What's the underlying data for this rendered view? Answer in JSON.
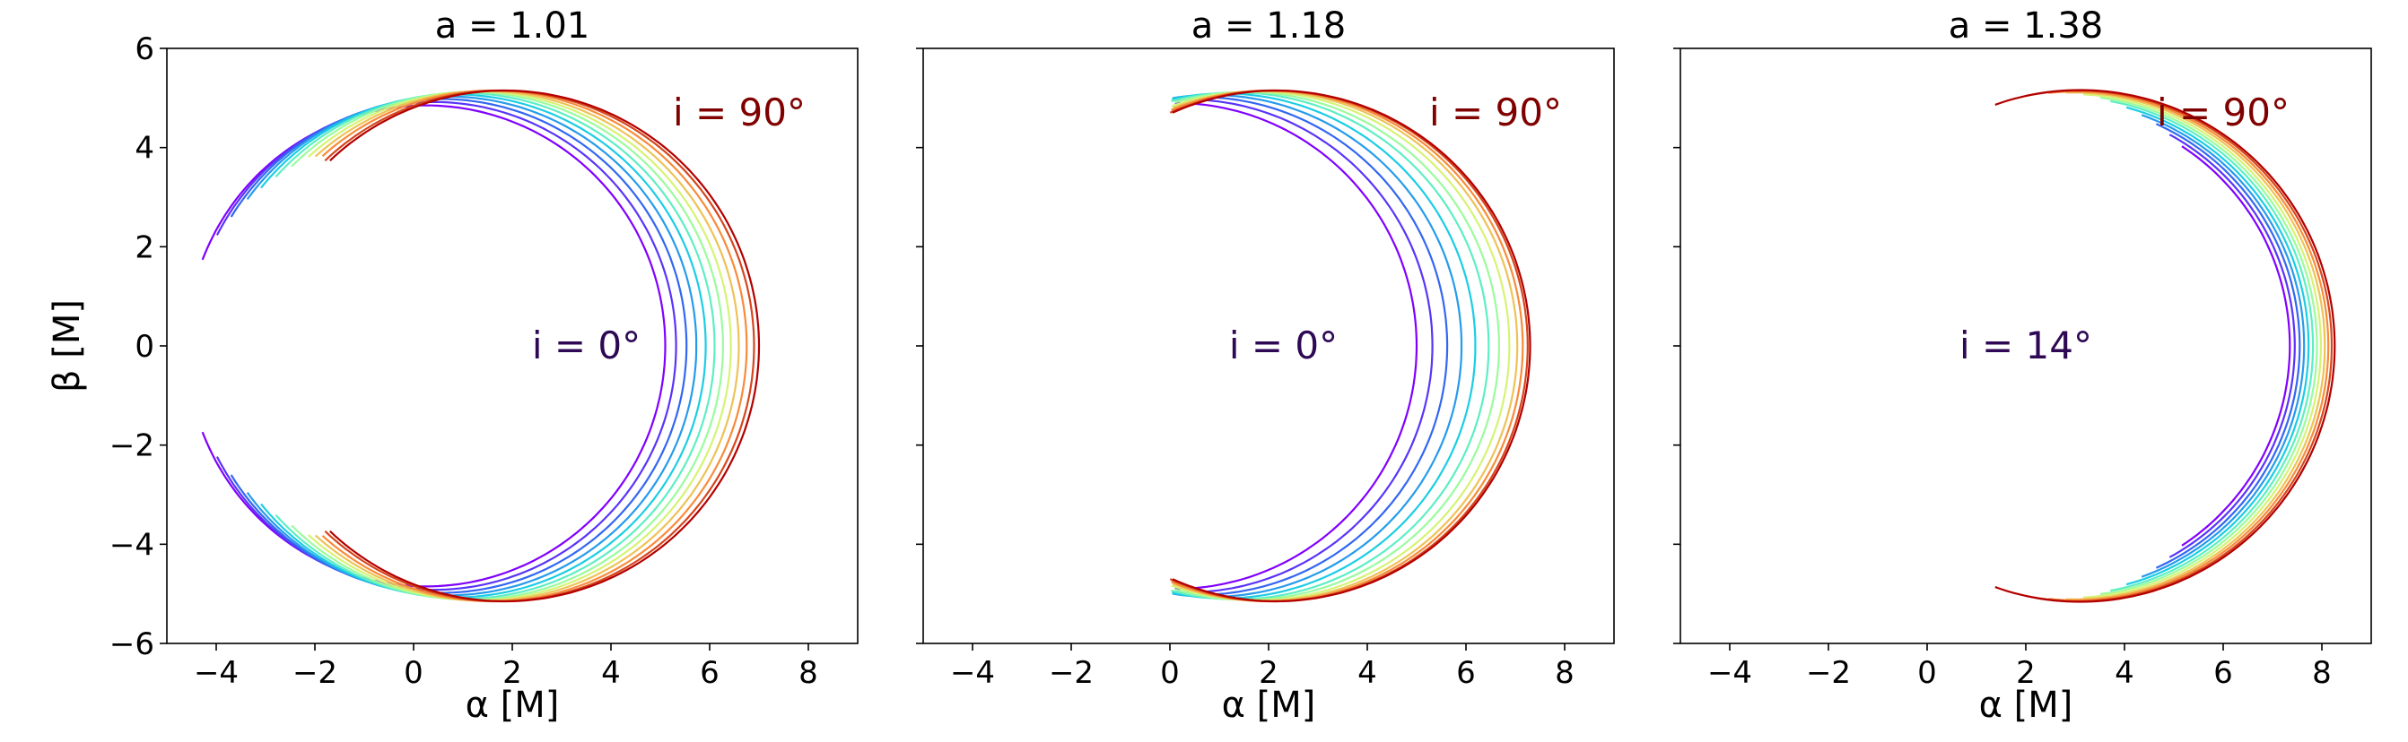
{
  "chart_data": [
    {
      "type": "line",
      "title": "a = 1.01",
      "xlabel": "α [M]",
      "ylabel": "β [M]",
      "xlim": [
        -5,
        9
      ],
      "ylim": [
        -6,
        6
      ],
      "xticks": [
        "−4",
        "−2",
        "0",
        "2",
        "4",
        "6",
        "8"
      ],
      "yticks": [
        "−6",
        "−4",
        "−2",
        "0",
        "2",
        "4",
        "6"
      ],
      "xtick_values": [
        -4,
        -2,
        0,
        2,
        4,
        6,
        8
      ],
      "ytick_values": [
        -6,
        -4,
        -2,
        0,
        2,
        4,
        6
      ],
      "annotations": [
        {
          "text": "i = 90°",
          "x": 6.6,
          "y": 4.7,
          "color": "#800000"
        },
        {
          "text": "i = 0°",
          "x": 3.5,
          "y": 0.0,
          "color": "#2e0854"
        }
      ],
      "series_meta": {
        "count": 12,
        "colormap": "rainbow",
        "inclination_start": 0,
        "inclination_end": 90
      },
      "shadow_params": [
        {
          "center_x": 0.25,
          "radius": 4.85,
          "cut_left_x": -4.3
        },
        {
          "center_x": 0.4,
          "radius": 4.92,
          "cut_left_x": -4.0
        },
        {
          "center_x": 0.55,
          "radius": 4.98,
          "cut_left_x": -3.7
        },
        {
          "center_x": 0.7,
          "radius": 5.03,
          "cut_left_x": -3.4
        },
        {
          "center_x": 0.85,
          "radius": 5.07,
          "cut_left_x": -3.1
        },
        {
          "center_x": 1.0,
          "radius": 5.1,
          "cut_left_x": -2.8
        },
        {
          "center_x": 1.15,
          "radius": 5.12,
          "cut_left_x": -2.5
        },
        {
          "center_x": 1.3,
          "radius": 5.13,
          "cut_left_x": -2.2
        },
        {
          "center_x": 1.45,
          "radius": 5.14,
          "cut_left_x": -2.0
        },
        {
          "center_x": 1.6,
          "radius": 5.15,
          "cut_left_x": -1.9
        },
        {
          "center_x": 1.75,
          "radius": 5.15,
          "cut_left_x": -1.8
        },
        {
          "center_x": 1.85,
          "radius": 5.15,
          "cut_left_x": -1.75
        }
      ]
    },
    {
      "type": "line",
      "title": "a = 1.18",
      "xlabel": "α [M]",
      "ylabel": "",
      "xlim": [
        -5,
        9
      ],
      "ylim": [
        -6,
        6
      ],
      "xticks": [
        "−4",
        "−2",
        "0",
        "2",
        "4",
        "6",
        "8"
      ],
      "yticks": [],
      "xtick_values": [
        -4,
        -2,
        0,
        2,
        4,
        6,
        8
      ],
      "ytick_values": [
        -6,
        -4,
        -2,
        0,
        2,
        4,
        6
      ],
      "annotations": [
        {
          "text": "i = 90°",
          "x": 6.6,
          "y": 4.7,
          "color": "#800000"
        },
        {
          "text": "i = 0°",
          "x": 2.3,
          "y": 0.0,
          "color": "#2e0854"
        }
      ],
      "series_meta": {
        "count": 12,
        "colormap": "rainbow",
        "inclination_start": 0,
        "inclination_end": 90
      },
      "shadow_params": [
        {
          "center_x": 0.1,
          "radius": 4.9,
          "cut_left_x": 0.0
        },
        {
          "center_x": 0.35,
          "radius": 4.97,
          "cut_left_x": 0.0
        },
        {
          "center_x": 0.6,
          "radius": 5.02,
          "cut_left_x": 0.0
        },
        {
          "center_x": 0.85,
          "radius": 5.06,
          "cut_left_x": 0.0
        },
        {
          "center_x": 1.1,
          "radius": 5.09,
          "cut_left_x": 0.0
        },
        {
          "center_x": 1.35,
          "radius": 5.11,
          "cut_left_x": 0.0
        },
        {
          "center_x": 1.55,
          "radius": 5.12,
          "cut_left_x": 0.0
        },
        {
          "center_x": 1.75,
          "radius": 5.13,
          "cut_left_x": 0.0
        },
        {
          "center_x": 1.9,
          "radius": 5.14,
          "cut_left_x": 0.0
        },
        {
          "center_x": 2.0,
          "radius": 5.15,
          "cut_left_x": 0.0
        },
        {
          "center_x": 2.1,
          "radius": 5.15,
          "cut_left_x": 0.0
        },
        {
          "center_x": 2.15,
          "radius": 5.15,
          "cut_left_x": 0.0
        }
      ]
    },
    {
      "type": "line",
      "title": "a = 1.38",
      "xlabel": "α [M]",
      "ylabel": "",
      "xlim": [
        -5,
        9
      ],
      "ylim": [
        -6,
        6
      ],
      "xticks": [
        "−4",
        "−2",
        "0",
        "2",
        "4",
        "6",
        "8"
      ],
      "yticks": [],
      "xtick_values": [
        -4,
        -2,
        0,
        2,
        4,
        6,
        8
      ],
      "ytick_values": [
        -6,
        -4,
        -2,
        0,
        2,
        4,
        6
      ],
      "annotations": [
        {
          "text": "i = 90°",
          "x": 6.0,
          "y": 4.7,
          "color": "#800000"
        },
        {
          "text": "i = 14°",
          "x": 2.0,
          "y": 0.0,
          "color": "#2e0854"
        }
      ],
      "series_meta": {
        "count": 12,
        "colormap": "rainbow",
        "inclination_start": 14,
        "inclination_end": 90
      },
      "shadow_params": [
        {
          "center_x": 2.55,
          "radius": 4.8,
          "cut_left_x": 5.15
        },
        {
          "center_x": 2.6,
          "radius": 4.85,
          "cut_left_x": 4.9
        },
        {
          "center_x": 2.65,
          "radius": 4.9,
          "cut_left_x": 4.6
        },
        {
          "center_x": 2.7,
          "radius": 4.94,
          "cut_left_x": 4.3
        },
        {
          "center_x": 2.75,
          "radius": 4.98,
          "cut_left_x": 4.0
        },
        {
          "center_x": 2.8,
          "radius": 5.02,
          "cut_left_x": 3.7
        },
        {
          "center_x": 2.85,
          "radius": 5.05,
          "cut_left_x": 3.4
        },
        {
          "center_x": 2.9,
          "radius": 5.08,
          "cut_left_x": 3.1
        },
        {
          "center_x": 2.95,
          "radius": 5.11,
          "cut_left_x": 2.8
        },
        {
          "center_x": 3.0,
          "radius": 5.13,
          "cut_left_x": 2.4
        },
        {
          "center_x": 3.05,
          "radius": 5.15,
          "cut_left_x": 1.9
        },
        {
          "center_x": 3.1,
          "radius": 5.16,
          "cut_left_x": 1.3
        }
      ]
    }
  ]
}
